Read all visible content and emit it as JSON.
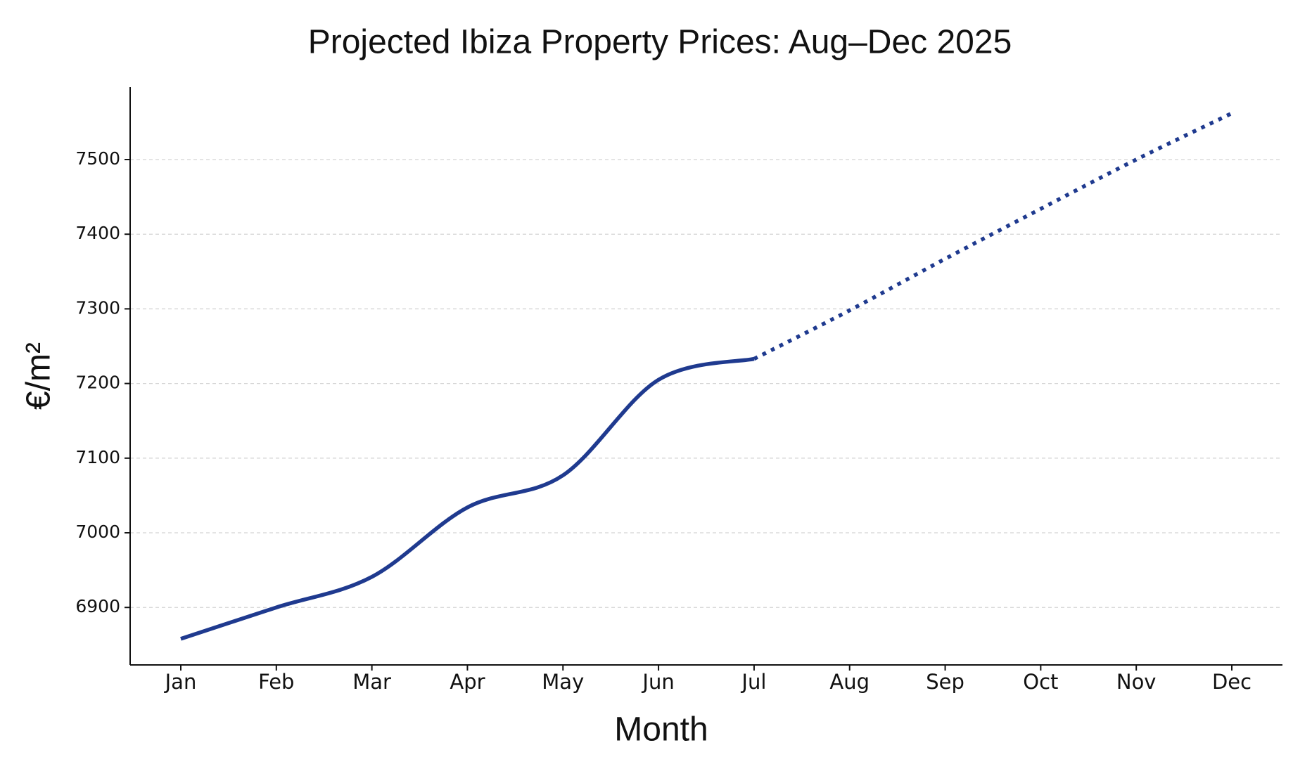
{
  "chart_data": {
    "type": "line",
    "title": "Projected Ibiza Property Prices: Aug–Dec 2025",
    "x_label": "Month",
    "y_label": "€/m²",
    "categories": [
      "Jan",
      "Feb",
      "Mar",
      "Apr",
      "May",
      "Jun",
      "Jul",
      "Aug",
      "Sep",
      "Oct",
      "Nov",
      "Dec"
    ],
    "series": [
      {
        "color": "#1f3a8f",
        "style": "solid",
        "values": [
          6858,
          6900,
          6941,
          7034,
          7077,
          7205,
          7233,
          null,
          null,
          null,
          null,
          null
        ]
      },
      {
        "color": "#1f3a8f",
        "style": "dotted",
        "values": [
          null,
          null,
          null,
          null,
          null,
          null,
          7233,
          7298,
          7367,
          7434,
          7500,
          7562
        ]
      }
    ],
    "ylim": [
      6823,
      7597
    ],
    "yticks": [
      6900,
      7000,
      7100,
      7200,
      7300,
      7400,
      7500
    ],
    "grid": true
  }
}
